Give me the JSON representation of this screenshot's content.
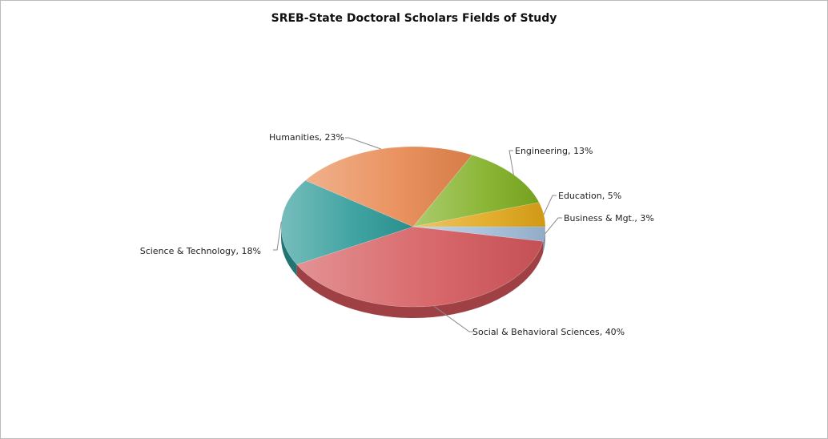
{
  "chart_data": {
    "type": "pie",
    "title": "SREB-State Doctoral Scholars Fields of Study",
    "slices": [
      {
        "label": "Business & Mgt., 3%",
        "name": "Business & Mgt.",
        "value": 3,
        "color": "#9fbbd8"
      },
      {
        "label": "Social & Behavioral Sciences, 40%",
        "name": "Social & Behavioral Sciences",
        "value": 40,
        "color": "#d4575b"
      },
      {
        "label": "Science & Technology, 18%",
        "name": "Science & Technology",
        "value": 18,
        "color": "#2c9a98"
      },
      {
        "label": "Humanities, 23%",
        "name": "Humanities",
        "value": 23,
        "color": "#e8874e"
      },
      {
        "label": "Engineering, 13%",
        "name": "Engineering",
        "value": 13,
        "color": "#7faf22"
      },
      {
        "label": "Education, 5%",
        "name": "Education",
        "value": 5,
        "color": "#e1a618"
      }
    ],
    "legend": "none"
  }
}
